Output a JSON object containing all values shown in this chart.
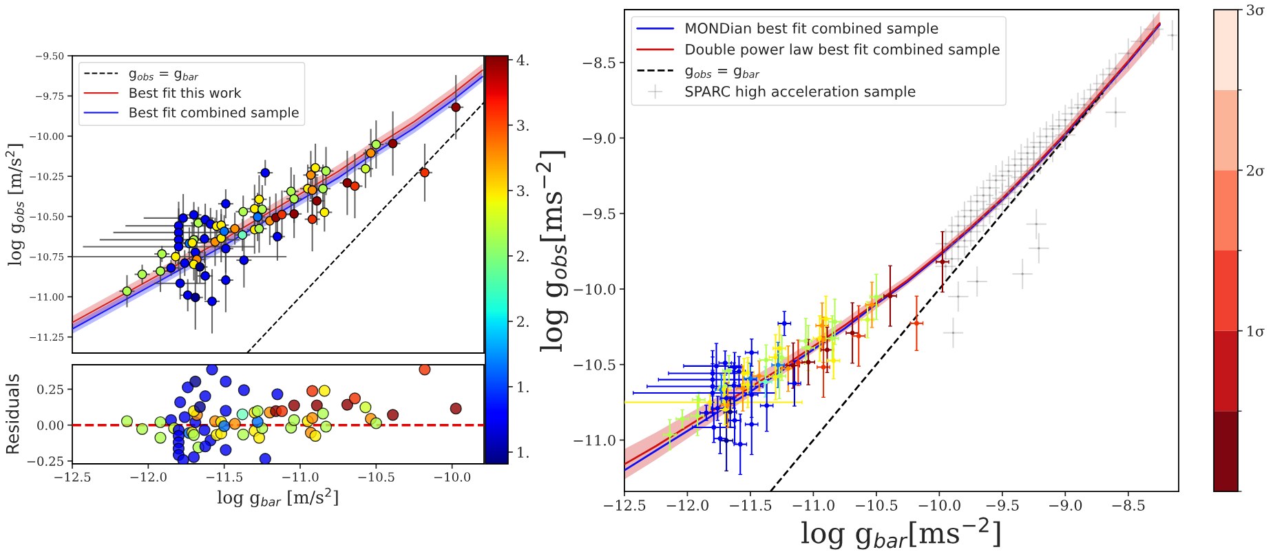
{
  "chart_data": [
    {
      "type": "scatter",
      "xlim": [
        -12.5,
        -9.79
      ],
      "ylim": [
        -11.35,
        -9.5
      ],
      "tick_labels": "y",
      "ylabel": "log g$_{obs}$ [m/s$^{2}$]",
      "legend": "top left",
      "yticks": [
        {
          "value": -9.5,
          "label": "−9.50"
        },
        {
          "value": -9.75,
          "label": "−9.75"
        },
        {
          "value": -10.0,
          "label": "−10.00"
        },
        {
          "value": -10.25,
          "label": "−10.25"
        },
        {
          "value": -10.5,
          "label": "−10.50"
        },
        {
          "value": -10.75,
          "label": "−10.75"
        },
        {
          "value": -11.0,
          "label": "−11.00"
        },
        {
          "value": -11.25,
          "label": "−11.25"
        }
      ],
      "clim": [
        0.91,
        4.03
      ],
      "cticks": [
        {
          "value": 4.0,
          "label": "4."
        },
        {
          "value": 3.5,
          "label": "3."
        },
        {
          "value": 3.0,
          "label": "3."
        },
        {
          "value": 2.5,
          "label": "2."
        },
        {
          "value": 2.0,
          "label": "2."
        },
        {
          "value": 1.5,
          "label": "1."
        },
        {
          "value": 1.0,
          "label": "1."
        }
      ],
      "series": [
        {
          "type": "line",
          "name": "g$_{obs}$ = g$_{bar}$",
          "color": "#000000",
          "line_style": "dashed",
          "x": [
            -11.35,
            -9.79
          ],
          "values": [
            -11.35,
            -9.79
          ]
        },
        {
          "type": "line",
          "name": "Best fit this work",
          "color": "#d62020",
          "x": [
            -12.5,
            -12.25,
            -12.0,
            -11.75,
            -11.5,
            -11.25,
            -11.0,
            -10.75,
            -10.5,
            -10.25,
            -10.0,
            -9.8
          ],
          "values": [
            -11.16,
            -11.03,
            -10.9,
            -10.77,
            -10.64,
            -10.5,
            -10.36,
            -10.22,
            -10.06,
            -9.91,
            -9.74,
            -9.59
          ],
          "lower": [
            -11.2,
            -11.07,
            -10.94,
            -10.81,
            -10.68,
            -10.54,
            -10.4,
            -10.26,
            -10.1,
            -9.95,
            -9.78,
            -9.63
          ],
          "upper": [
            -11.12,
            -10.99,
            -10.86,
            -10.73,
            -10.6,
            -10.46,
            -10.32,
            -10.18,
            -10.02,
            -9.87,
            -9.7,
            -9.55
          ]
        },
        {
          "type": "line",
          "name": "Best fit combined sample",
          "color": "#1a1aff",
          "x": [
            -12.5,
            -12.25,
            -12.0,
            -11.75,
            -11.5,
            -11.25,
            -11.0,
            -10.75,
            -10.5,
            -10.25,
            -10.0,
            -9.8
          ],
          "values": [
            -11.2,
            -11.07,
            -10.94,
            -10.81,
            -10.68,
            -10.54,
            -10.4,
            -10.26,
            -10.1,
            -9.95,
            -9.78,
            -9.63
          ],
          "lower": [
            -11.23,
            -11.1,
            -10.97,
            -10.84,
            -10.71,
            -10.57,
            -10.43,
            -10.29,
            -10.13,
            -9.98,
            -9.81,
            -9.66
          ],
          "upper": [
            -11.17,
            -11.04,
            -10.91,
            -10.78,
            -10.65,
            -10.51,
            -10.37,
            -10.23,
            -10.07,
            -9.92,
            -9.75,
            -9.6
          ]
        },
        {
          "marker": "circle",
          "x": [
            -12.14,
            -12.04,
            -11.91,
            -11.92,
            -11.85,
            -11.82,
            -11.8,
            -11.8,
            -11.8,
            -11.8,
            -11.77,
            -11.79,
            -11.76,
            -11.74,
            -11.69,
            -11.7,
            -11.67,
            -11.7,
            -11.73,
            -11.71,
            -11.69,
            -11.68,
            -11.7,
            -11.66,
            -11.625,
            -11.59,
            -11.63,
            -11.625,
            -11.58,
            -11.56,
            -11.55,
            -11.52,
            -11.52,
            -11.5,
            -11.49,
            -11.49,
            -11.49,
            -11.43,
            -11.38,
            -11.375,
            -11.37,
            -11.3,
            -11.27,
            -11.25,
            -11.28,
            -11.3,
            -11.27,
            -11.23,
            -11.2,
            -11.16,
            -11.12,
            -11.15,
            -11.06,
            -11.04,
            -11.04,
            -10.95,
            -10.93,
            -10.92,
            -10.92,
            -10.9,
            -10.89,
            -10.85,
            -10.83,
            -10.84,
            -10.69,
            -10.64,
            -10.57,
            -10.535,
            -10.5,
            -10.39,
            -10.18,
            -9.975
          ],
          "values": [
            -10.965,
            -10.86,
            -10.733,
            -10.84,
            -10.82,
            -10.75,
            -10.558,
            -10.6,
            -10.645,
            -10.688,
            -10.51,
            -10.916,
            -10.79,
            -10.99,
            -11.004,
            -10.49,
            -10.54,
            -10.645,
            -10.668,
            -10.664,
            -10.723,
            -10.768,
            -10.798,
            -10.814,
            -10.52,
            -10.547,
            -10.639,
            -10.87,
            -11.028,
            -10.658,
            -10.56,
            -10.554,
            -10.635,
            -10.592,
            -10.7,
            -10.421,
            -10.896,
            -10.576,
            -10.615,
            -10.47,
            -10.772,
            -10.452,
            -10.393,
            -10.455,
            -10.503,
            -10.582,
            -10.576,
            -10.228,
            -10.527,
            -10.507,
            -10.488,
            -10.625,
            -10.344,
            -10.39,
            -10.484,
            -10.327,
            -10.242,
            -10.336,
            -10.517,
            -10.197,
            -10.403,
            -10.327,
            -10.217,
            -10.474,
            -10.291,
            -10.311,
            -10.203,
            -10.105,
            -10.052,
            -10.046,
            -10.227,
            -9.82
          ],
          "colors": [
            "#b0ff50",
            "#b0ff50",
            "#b0ff50",
            "#b0ff50",
            "#0000f0",
            "#fff000",
            "#0000f0",
            "#0000f0",
            "#0000f0",
            "#0000f0",
            "#0000f0",
            "#0000f0",
            "#0000f0",
            "#0000f0",
            "#000090",
            "#0000f0",
            "#b0ff50",
            "#b0ff50",
            "#0070ff",
            "#fff000",
            "#0000f0",
            "#ff9000",
            "#fff000",
            "#000090",
            "#0000f0",
            "#0000f0",
            "#0000f0",
            "#0000f0",
            "#0000f0",
            "#ff9000",
            "#fff000",
            "#fff000",
            "#fff000",
            "#0070ff",
            "#0000f0",
            "#0000f0",
            "#0000f0",
            "#ff9000",
            "#70ffc0",
            "#b0ff50",
            "#0000f0",
            "#fff000",
            "#fff000",
            "#b0ff50",
            "#0070ff",
            "#fff000",
            "#b0ff50",
            "#0000f0",
            "#ff9000",
            "#900000",
            "#f03000",
            "#0000f0",
            "#b0ff50",
            "#b0ff50",
            "#900000",
            "#fff000",
            "#ff9000",
            "#ff9000",
            "#f03000",
            "#fff000",
            "#900000",
            "#b0ff50",
            "#b0ff50",
            "#fff000",
            "#900000",
            "#f03000",
            "#d0ff30",
            "#ff9000",
            "#b0ff50",
            "#900000",
            "#f03000",
            "#900000"
          ],
          "errors": [
            0.1,
            0.06,
            0.05,
            0.13,
            0.05,
            0.05,
            0.15,
            0.15,
            0.15,
            0.15,
            0.15,
            0.1,
            0.08,
            0.1,
            0.2,
            0.08,
            0.1,
            0.1,
            0.1,
            0.12,
            0.1,
            0.15,
            0.1,
            0.1,
            0.1,
            0.1,
            0.15,
            0.15,
            0.2,
            0.15,
            0.1,
            0.1,
            0.15,
            0.1,
            0.15,
            0.09,
            0.2,
            0.1,
            0.1,
            0.1,
            0.17,
            0.15,
            0.15,
            0.15,
            0.15,
            0.15,
            0.15,
            0.08,
            0.15,
            0.15,
            0.15,
            0.15,
            0.15,
            0.15,
            0.15,
            0.15,
            0.15,
            0.15,
            0.2,
            0.15,
            0.15,
            0.15,
            0.15,
            0.12,
            0.2,
            0.2,
            0.12,
            0.15,
            0.15,
            0.2,
            0.18,
            0.2
          ],
          "xerrors": [
            0.05,
            0.05,
            0.05,
            0.05,
            0.05,
            [
              -12.5,
              -11.09
            ],
            [
              -12.15,
              -11.5
            ],
            [
              -12.23,
              -11.45
            ],
            [
              -12.32,
              -11.4
            ],
            [
              -12.43,
              -11.3
            ],
            [
              -12.03,
              -11.57
            ],
            0.17,
            0.05,
            0.05,
            0.05,
            0.05,
            0.05,
            0.05,
            0.05,
            0.07,
            0.05,
            0.05,
            0.05,
            0.05,
            0.05,
            0.05,
            0.05,
            0.05,
            0.05,
            0.05,
            0.05,
            0.05,
            0.05,
            0.05,
            0.05,
            0.05,
            0.05,
            0.05,
            0.05,
            0.05,
            0.05,
            0.05,
            0.05,
            0.05,
            0.05,
            0.05,
            0.05,
            0.05,
            0.05,
            0.05,
            0.05,
            0.05,
            0.05,
            0.05,
            0.05,
            0.05,
            0.05,
            0.05,
            0.05,
            0.05,
            0.05,
            0.05,
            0.05,
            0.05,
            0.05,
            0.05,
            0.05,
            0.05,
            0.05,
            0.05,
            0.05,
            0.05
          ]
        }
      ]
    },
    {
      "type": "scatter",
      "xlim": [
        -12.5,
        -9.79
      ],
      "ylim": [
        -0.27,
        0.42
      ],
      "xlabel": "log g$_{bar}$ [m/s$^{2}$]",
      "ylabel": "Residuals",
      "xticks": [
        {
          "value": -12.5,
          "label": "−12.5"
        },
        {
          "value": -12.0,
          "label": "−12.0"
        },
        {
          "value": -11.5,
          "label": "−11.5"
        },
        {
          "value": -11.0,
          "label": "−11.0"
        },
        {
          "value": -10.5,
          "label": "−10.5"
        },
        {
          "value": -10.0,
          "label": "−10.0"
        }
      ],
      "yticks": [
        {
          "value": 0.25,
          "label": "0.25"
        },
        {
          "value": 0.0,
          "label": "0.00"
        },
        {
          "value": -0.25,
          "label": "−0.25"
        }
      ],
      "ref_lines": [
        {
          "axis": "y",
          "value": 0,
          "color": "#e00000",
          "line_style": "dashed"
        }
      ],
      "series": [
        {
          "marker": "circle",
          "x": [
            -12.14,
            -12.04,
            -11.92,
            -11.92,
            -11.85,
            -11.83,
            -11.8,
            -11.8,
            -11.8,
            -11.8,
            -11.8,
            -11.77,
            -11.79,
            -11.76,
            -11.74,
            -11.69,
            -11.7,
            -11.67,
            -11.73,
            -11.71,
            -11.7,
            -11.69,
            -11.68,
            -11.7,
            -11.66,
            -11.625,
            -11.59,
            -11.63,
            -11.625,
            -11.58,
            -11.56,
            -11.55,
            -11.52,
            -11.52,
            -11.5,
            -11.49,
            -11.49,
            -11.49,
            -11.43,
            -11.38,
            -11.375,
            -11.37,
            -11.3,
            -11.27,
            -11.25,
            -11.28,
            -11.3,
            -11.28,
            -11.23,
            -11.2,
            -11.16,
            -11.12,
            -11.15,
            -11.06,
            -11.04,
            -11.04,
            -10.95,
            -10.93,
            -10.92,
            -10.92,
            -10.9,
            -10.89,
            -10.85,
            -10.83,
            -10.84,
            -10.69,
            -10.64,
            -10.57,
            -10.535,
            -10.5,
            -10.39,
            -10.18,
            -9.975
          ],
          "values": [
            0.027,
            -0.027,
            0.02,
            -0.088,
            0.035,
            -0.022,
            -0.035,
            -0.075,
            -0.12,
            -0.164,
            -0.208,
            -0.243,
            0.159,
            0.055,
            0.263,
            0.303,
            -0.223,
            -0.155,
            -0.055,
            -0.051,
            -0.069,
            0.02,
            0.071,
            0.097,
            0.126,
            0.201,
            -0.106,
            -0.035,
            -0.148,
            0.387,
            0.027,
            -0.069,
            -0.058,
            0.022,
            -0.007,
            0.1,
            -0.173,
            0.303,
            0.009,
            0.075,
            -0.066,
            0.243,
            -0.04,
            -0.088,
            -0.022,
            0.022,
            0.088,
            0.097,
            -0.235,
            0.088,
            0.097,
            0.097,
            0.215,
            -0.018,
            0.035,
            0.137,
            0.027,
            -0.053,
            0.049,
            0.237,
            -0.075,
            0.137,
            0.08,
            -0.011,
            0.239,
            0.142,
            0.186,
            0.124,
            0.044,
            0.013,
            0.071,
            0.387,
            0.115
          ],
          "colors": [
            "#b0ff50",
            "#b0ff50",
            "#b0ff50",
            "#b0ff50",
            "#0000f0",
            "#d0ff30",
            "#0000f0",
            "#0000f0",
            "#0000f0",
            "#0000f0",
            "#0000f0",
            "#0000f0",
            "#0000f0",
            "#0000f0",
            "#0000f0",
            "#000090",
            "#0000f0",
            "#b0ff50",
            "#0070ff",
            "#fff000",
            "#b0ff50",
            "#0000f0",
            "#ff9000",
            "#fff000",
            "#000090",
            "#0000f0",
            "#0000f0",
            "#0000f0",
            "#0000f0",
            "#0000f0",
            "#ff9000",
            "#fff000",
            "#fff000",
            "#fff000",
            "#0070ff",
            "#0000f0",
            "#0000f0",
            "#0000f0",
            "#ff9000",
            "#70ffc0",
            "#b0ff50",
            "#0000f0",
            "#fff000",
            "#fff000",
            "#b0ff50",
            "#0070ff",
            "#fff000",
            "#b0ff50",
            "#0000f0",
            "#ff9000",
            "#900000",
            "#f03000",
            "#0000f0",
            "#b0ff50",
            "#b0ff50",
            "#900000",
            "#fff000",
            "#ff9000",
            "#ff9000",
            "#f03000",
            "#fff000",
            "#900000",
            "#b0ff50",
            "#b0ff50",
            "#fff000",
            "#900000",
            "#f03000",
            "#d0ff30",
            "#ff9000",
            "#b0ff50",
            "#900000",
            "#f03000",
            "#900000"
          ]
        }
      ]
    },
    {
      "type": "scatter",
      "xlim": [
        -12.5,
        -8.1
      ],
      "ylim": [
        -11.34,
        -8.15
      ],
      "xlabel": "log g$_{bar}$[ms$^{−2}$]",
      "ylabel": "log g$_{obs}$[ms$^{−2}$]",
      "legend": "top left",
      "xticks": [
        {
          "value": -12.5,
          "label": "−12.5"
        },
        {
          "value": -12.0,
          "label": "−12.0"
        },
        {
          "value": -11.5,
          "label": "−11.5"
        },
        {
          "value": -11.0,
          "label": "−11.0"
        },
        {
          "value": -10.5,
          "label": "−10.5"
        },
        {
          "value": -10.0,
          "label": "−10.0"
        },
        {
          "value": -9.5,
          "label": "−9.5"
        },
        {
          "value": -9.0,
          "label": "−9.0"
        },
        {
          "value": -8.5,
          "label": "−8.5"
        }
      ],
      "yticks": [
        {
          "value": -8.5,
          "label": "−8.5"
        },
        {
          "value": -9.0,
          "label": "−9.0"
        },
        {
          "value": -9.5,
          "label": "−9.5"
        },
        {
          "value": -10.0,
          "label": "−10.0"
        },
        {
          "value": -10.5,
          "label": "−10.5"
        },
        {
          "value": -11.0,
          "label": "−11.0"
        }
      ],
      "clim": [
        0,
        3
      ],
      "cticks": [
        {
          "value": 1,
          "label": "1σ"
        },
        {
          "value": 2,
          "label": "2σ"
        },
        {
          "value": 3,
          "label": "3σ"
        }
      ],
      "series": [
        {
          "type": "line",
          "name": "MONDian best fit combined sample",
          "color": "#1010ee",
          "x": [
            -12.5,
            -12.25,
            -12.0,
            -11.75,
            -11.5,
            -11.25,
            -11.0,
            -10.75,
            -10.5,
            -10.25,
            -10.0,
            -9.75,
            -9.5,
            -9.25,
            -9.0,
            -8.75,
            -8.5,
            -8.25
          ],
          "values": [
            -11.2,
            -11.07,
            -10.94,
            -10.81,
            -10.68,
            -10.54,
            -10.4,
            -10.26,
            -10.1,
            -9.95,
            -9.78,
            -9.6,
            -9.41,
            -9.2,
            -8.98,
            -8.74,
            -8.5,
            -8.25
          ]
        },
        {
          "type": "line",
          "name": "Double power law best fit combined sample",
          "color": "#d01010",
          "x": [
            -12.5,
            -12.25,
            -12.0,
            -11.75,
            -11.5,
            -11.25,
            -11.0,
            -10.75,
            -10.5,
            -10.25,
            -10.0,
            -9.75,
            -9.5,
            -9.25,
            -9.0,
            -8.75,
            -8.5,
            -8.25
          ],
          "values": [
            -11.16,
            -11.04,
            -10.91,
            -10.78,
            -10.65,
            -10.52,
            -10.38,
            -10.24,
            -10.09,
            -9.94,
            -9.77,
            -9.59,
            -9.4,
            -9.19,
            -8.97,
            -8.73,
            -8.49,
            -8.24
          ],
          "lower": [
            -11.26,
            -11.13,
            -10.99,
            -10.85,
            -10.71,
            -10.57,
            -10.42,
            -10.28,
            -10.13,
            -9.97,
            -9.8,
            -9.62,
            -9.43,
            -9.22,
            -9.01,
            -8.78,
            -8.56,
            -8.32
          ],
          "upper": [
            -11.06,
            -10.95,
            -10.83,
            -10.71,
            -10.59,
            -10.47,
            -10.34,
            -10.2,
            -10.05,
            -9.91,
            -9.74,
            -9.56,
            -9.37,
            -9.16,
            -8.93,
            -8.68,
            -8.42,
            -8.16
          ]
        },
        {
          "type": "line",
          "name": "g$_{obs}$ = g$_{bar}$",
          "color": "#000000",
          "line_style": "dashed",
          "x": [
            -11.34,
            -8.7
          ],
          "values": [
            -11.34,
            -8.7
          ]
        },
        {
          "name": "SPARC high acceleration sample",
          "color": "#808080",
          "marker": "circle",
          "x": [
            -9.95,
            -9.95,
            -9.9,
            -9.9,
            -9.85,
            -9.85,
            -9.8,
            -9.8,
            -9.75,
            -9.75,
            -9.7,
            -9.7,
            -9.65,
            -9.65,
            -9.6,
            -9.6,
            -9.55,
            -9.55,
            -9.5,
            -9.5,
            -9.45,
            -9.45,
            -9.4,
            -9.4,
            -9.35,
            -9.35,
            -9.3,
            -9.3,
            -9.25,
            -9.25,
            -9.2,
            -9.2,
            -9.15,
            -9.1,
            -9.1,
            -9.05,
            -9.0,
            -9.0,
            -8.95,
            -8.9,
            -8.85,
            -8.8,
            -8.75,
            -8.7,
            -8.65,
            -8.6,
            -8.5,
            -8.4,
            -8.3,
            -8.6,
            -8.15,
            -9.89,
            -9.34,
            -9.21,
            -9.23,
            -9.85,
            -9.7
          ],
          "values": [
            -9.7,
            -9.85,
            -9.62,
            -9.8,
            -9.58,
            -9.72,
            -9.52,
            -9.68,
            -9.48,
            -9.62,
            -9.42,
            -9.58,
            -9.38,
            -9.52,
            -9.33,
            -9.47,
            -9.28,
            -9.44,
            -9.25,
            -9.4,
            -9.22,
            -9.36,
            -9.18,
            -9.32,
            -9.14,
            -9.26,
            -9.1,
            -9.22,
            -9.06,
            -9.18,
            -9.03,
            -9.14,
            -8.99,
            -8.94,
            -9.06,
            -8.92,
            -8.88,
            -8.98,
            -8.84,
            -8.8,
            -8.78,
            -8.74,
            -8.68,
            -8.64,
            -8.58,
            -8.54,
            -8.44,
            -8.36,
            -8.28,
            -8.83,
            -8.32,
            -10.29,
            -9.9,
            -9.73,
            -9.57,
            -10.05,
            -9.95
          ],
          "errors": [
            0.1,
            0.1,
            0.1,
            0.1,
            0.1,
            0.1,
            0.1,
            0.1,
            0.1,
            0.1,
            0.1,
            0.1,
            0.1,
            0.1,
            0.1,
            0.1,
            0.1,
            0.1,
            0.1,
            0.1,
            0.1,
            0.1,
            0.1,
            0.1,
            0.1,
            0.1,
            0.1,
            0.1,
            0.1,
            0.1,
            0.1,
            0.1,
            0.1,
            0.1,
            0.1,
            0.1,
            0.1,
            0.1,
            0.1,
            0.1,
            0.1,
            0.1,
            0.1,
            0.1,
            0.1,
            0.1,
            0.1,
            0.1,
            0.1,
            0.1,
            0.1,
            0.1,
            0.1,
            0.1,
            0.1,
            0.1,
            0.1
          ],
          "xerrors": [
            0.08,
            0.08,
            0.08,
            0.08,
            0.08,
            0.08,
            0.08,
            0.08,
            0.08,
            0.08,
            0.08,
            0.08,
            0.08,
            0.08,
            0.08,
            0.08,
            0.08,
            0.08,
            0.08,
            0.08,
            0.08,
            0.08,
            0.08,
            0.08,
            0.08,
            0.08,
            0.08,
            0.08,
            0.08,
            0.08,
            0.08,
            0.08,
            0.08,
            0.08,
            0.08,
            0.08,
            0.08,
            0.08,
            0.08,
            0.08,
            0.08,
            0.08,
            0.08,
            0.08,
            0.08,
            0.08,
            0.08,
            0.08,
            0.08,
            0.08,
            0.04,
            0.08,
            0.08,
            0.08,
            0.08,
            0.08,
            0.08
          ]
        },
        {
          "marker": "circle",
          "x": [
            -12.14,
            -12.04,
            -11.91,
            -11.92,
            -11.85,
            -11.82,
            -11.8,
            -11.8,
            -11.8,
            -11.8,
            -11.77,
            -11.79,
            -11.76,
            -11.74,
            -11.69,
            -11.7,
            -11.67,
            -11.7,
            -11.73,
            -11.71,
            -11.69,
            -11.68,
            -11.7,
            -11.66,
            -11.625,
            -11.59,
            -11.63,
            -11.625,
            -11.58,
            -11.56,
            -11.55,
            -11.52,
            -11.52,
            -11.5,
            -11.49,
            -11.49,
            -11.49,
            -11.43,
            -11.38,
            -11.375,
            -11.37,
            -11.3,
            -11.27,
            -11.25,
            -11.28,
            -11.3,
            -11.27,
            -11.23,
            -11.2,
            -11.16,
            -11.12,
            -11.15,
            -11.06,
            -11.04,
            -11.04,
            -10.95,
            -10.93,
            -10.92,
            -10.92,
            -10.9,
            -10.89,
            -10.85,
            -10.83,
            -10.84,
            -10.69,
            -10.64,
            -10.57,
            -10.535,
            -10.5,
            -10.39,
            -10.18,
            -9.975
          ],
          "values": [
            -10.965,
            -10.86,
            -10.733,
            -10.84,
            -10.82,
            -10.75,
            -10.558,
            -10.6,
            -10.645,
            -10.688,
            -10.51,
            -10.916,
            -10.79,
            -10.99,
            -11.004,
            -10.49,
            -10.54,
            -10.645,
            -10.668,
            -10.664,
            -10.723,
            -10.768,
            -10.798,
            -10.814,
            -10.52,
            -10.547,
            -10.639,
            -10.87,
            -11.028,
            -10.658,
            -10.56,
            -10.554,
            -10.635,
            -10.592,
            -10.7,
            -10.421,
            -10.896,
            -10.576,
            -10.615,
            -10.47,
            -10.772,
            -10.452,
            -10.393,
            -10.455,
            -10.503,
            -10.582,
            -10.576,
            -10.228,
            -10.527,
            -10.507,
            -10.488,
            -10.625,
            -10.344,
            -10.39,
            -10.484,
            -10.327,
            -10.242,
            -10.336,
            -10.517,
            -10.197,
            -10.403,
            -10.327,
            -10.217,
            -10.474,
            -10.291,
            -10.311,
            -10.203,
            -10.105,
            -10.052,
            -10.046,
            -10.227,
            -9.82
          ],
          "colors": [
            "#b0ff50",
            "#b0ff50",
            "#b0ff50",
            "#b0ff50",
            "#0000f0",
            "#fff000",
            "#0000f0",
            "#0000f0",
            "#0000f0",
            "#0000f0",
            "#0000f0",
            "#0000f0",
            "#0000f0",
            "#0000f0",
            "#000090",
            "#0000f0",
            "#b0ff50",
            "#b0ff50",
            "#0070ff",
            "#fff000",
            "#0000f0",
            "#ff9000",
            "#fff000",
            "#000090",
            "#0000f0",
            "#0000f0",
            "#0000f0",
            "#0000f0",
            "#0000f0",
            "#ff9000",
            "#fff000",
            "#fff000",
            "#fff000",
            "#0070ff",
            "#0000f0",
            "#0000f0",
            "#0000f0",
            "#ff9000",
            "#70ffc0",
            "#b0ff50",
            "#0000f0",
            "#fff000",
            "#fff000",
            "#b0ff50",
            "#0070ff",
            "#fff000",
            "#b0ff50",
            "#0000f0",
            "#ff9000",
            "#900000",
            "#f03000",
            "#0000f0",
            "#b0ff50",
            "#b0ff50",
            "#900000",
            "#fff000",
            "#ff9000",
            "#ff9000",
            "#f03000",
            "#fff000",
            "#900000",
            "#b0ff50",
            "#b0ff50",
            "#fff000",
            "#900000",
            "#f03000",
            "#d0ff30",
            "#ff9000",
            "#b0ff50",
            "#900000",
            "#f03000",
            "#900000"
          ],
          "errors": [
            0.1,
            0.06,
            0.05,
            0.13,
            0.05,
            0.05,
            0.15,
            0.15,
            0.15,
            0.15,
            0.15,
            0.1,
            0.08,
            0.1,
            0.2,
            0.08,
            0.1,
            0.1,
            0.1,
            0.1,
            0.1,
            0.15,
            0.1,
            0.1,
            0.1,
            0.1,
            0.15,
            0.15,
            0.2,
            0.15,
            0.1,
            0.1,
            0.15,
            0.1,
            0.15,
            0.09,
            0.2,
            0.1,
            0.1,
            0.1,
            0.17,
            0.15,
            0.15,
            0.15,
            0.15,
            0.15,
            0.15,
            0.08,
            0.15,
            0.15,
            0.15,
            0.15,
            0.15,
            0.15,
            0.15,
            0.15,
            0.15,
            0.15,
            0.2,
            0.15,
            0.15,
            0.15,
            0.15,
            0.12,
            0.2,
            0.2,
            0.12,
            0.15,
            0.15,
            0.2,
            0.18,
            0.2
          ],
          "xerrors": [
            0.05,
            0.05,
            0.05,
            0.05,
            0.05,
            [
              -12.5,
              -11.09
            ],
            [
              -12.15,
              -11.5
            ],
            [
              -12.23,
              -11.45
            ],
            [
              -12.32,
              -11.4
            ],
            [
              -12.43,
              -11.3
            ],
            [
              -12.03,
              -11.57
            ],
            0.17,
            0.05,
            0.05,
            0.05,
            0.05,
            0.05,
            0.05,
            0.05,
            0.05,
            0.05,
            0.05,
            0.05,
            0.05,
            0.05,
            0.05,
            0.05,
            0.05,
            0.05,
            0.05,
            0.05,
            0.05,
            0.05,
            0.05,
            0.05,
            0.05,
            0.05,
            0.05,
            0.05,
            0.05,
            0.05,
            0.05,
            0.05,
            0.05,
            0.05,
            0.05,
            0.05,
            0.05,
            0.05,
            0.05,
            0.05,
            0.05,
            0.05,
            0.05,
            0.05,
            0.05,
            0.05,
            0.05,
            0.05,
            0.05,
            0.05,
            0.05,
            0.05,
            0.05,
            0.05,
            0.05,
            0.05,
            0.05,
            0.05,
            0.05,
            0.05,
            0.05
          ]
        }
      ]
    }
  ]
}
